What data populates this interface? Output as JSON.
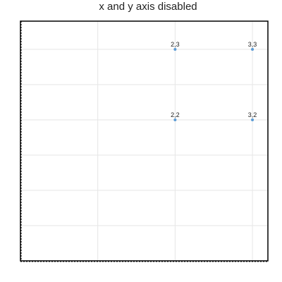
{
  "chart_data": {
    "type": "scatter",
    "title": "x and y axis disabled",
    "xlabel": "",
    "ylabel": "",
    "xlim": [
      0,
      3.2
    ],
    "ylim": [
      0,
      3.4
    ],
    "x_grid_values": [
      0,
      1,
      2,
      3
    ],
    "y_grid_values": [
      0.5,
      1,
      1.5,
      2,
      2.5,
      3
    ],
    "grid": true,
    "axes_visible": false,
    "points": [
      {
        "x": 2,
        "y": 3,
        "label": "2,3"
      },
      {
        "x": 3,
        "y": 3,
        "label": "3,3"
      },
      {
        "x": 2,
        "y": 2,
        "label": "2,2"
      },
      {
        "x": 3,
        "y": 2,
        "label": "3,2"
      }
    ],
    "colors": {
      "point": "#5b9bd5",
      "grid": "#e6e6e6",
      "frame": "#000000"
    }
  }
}
